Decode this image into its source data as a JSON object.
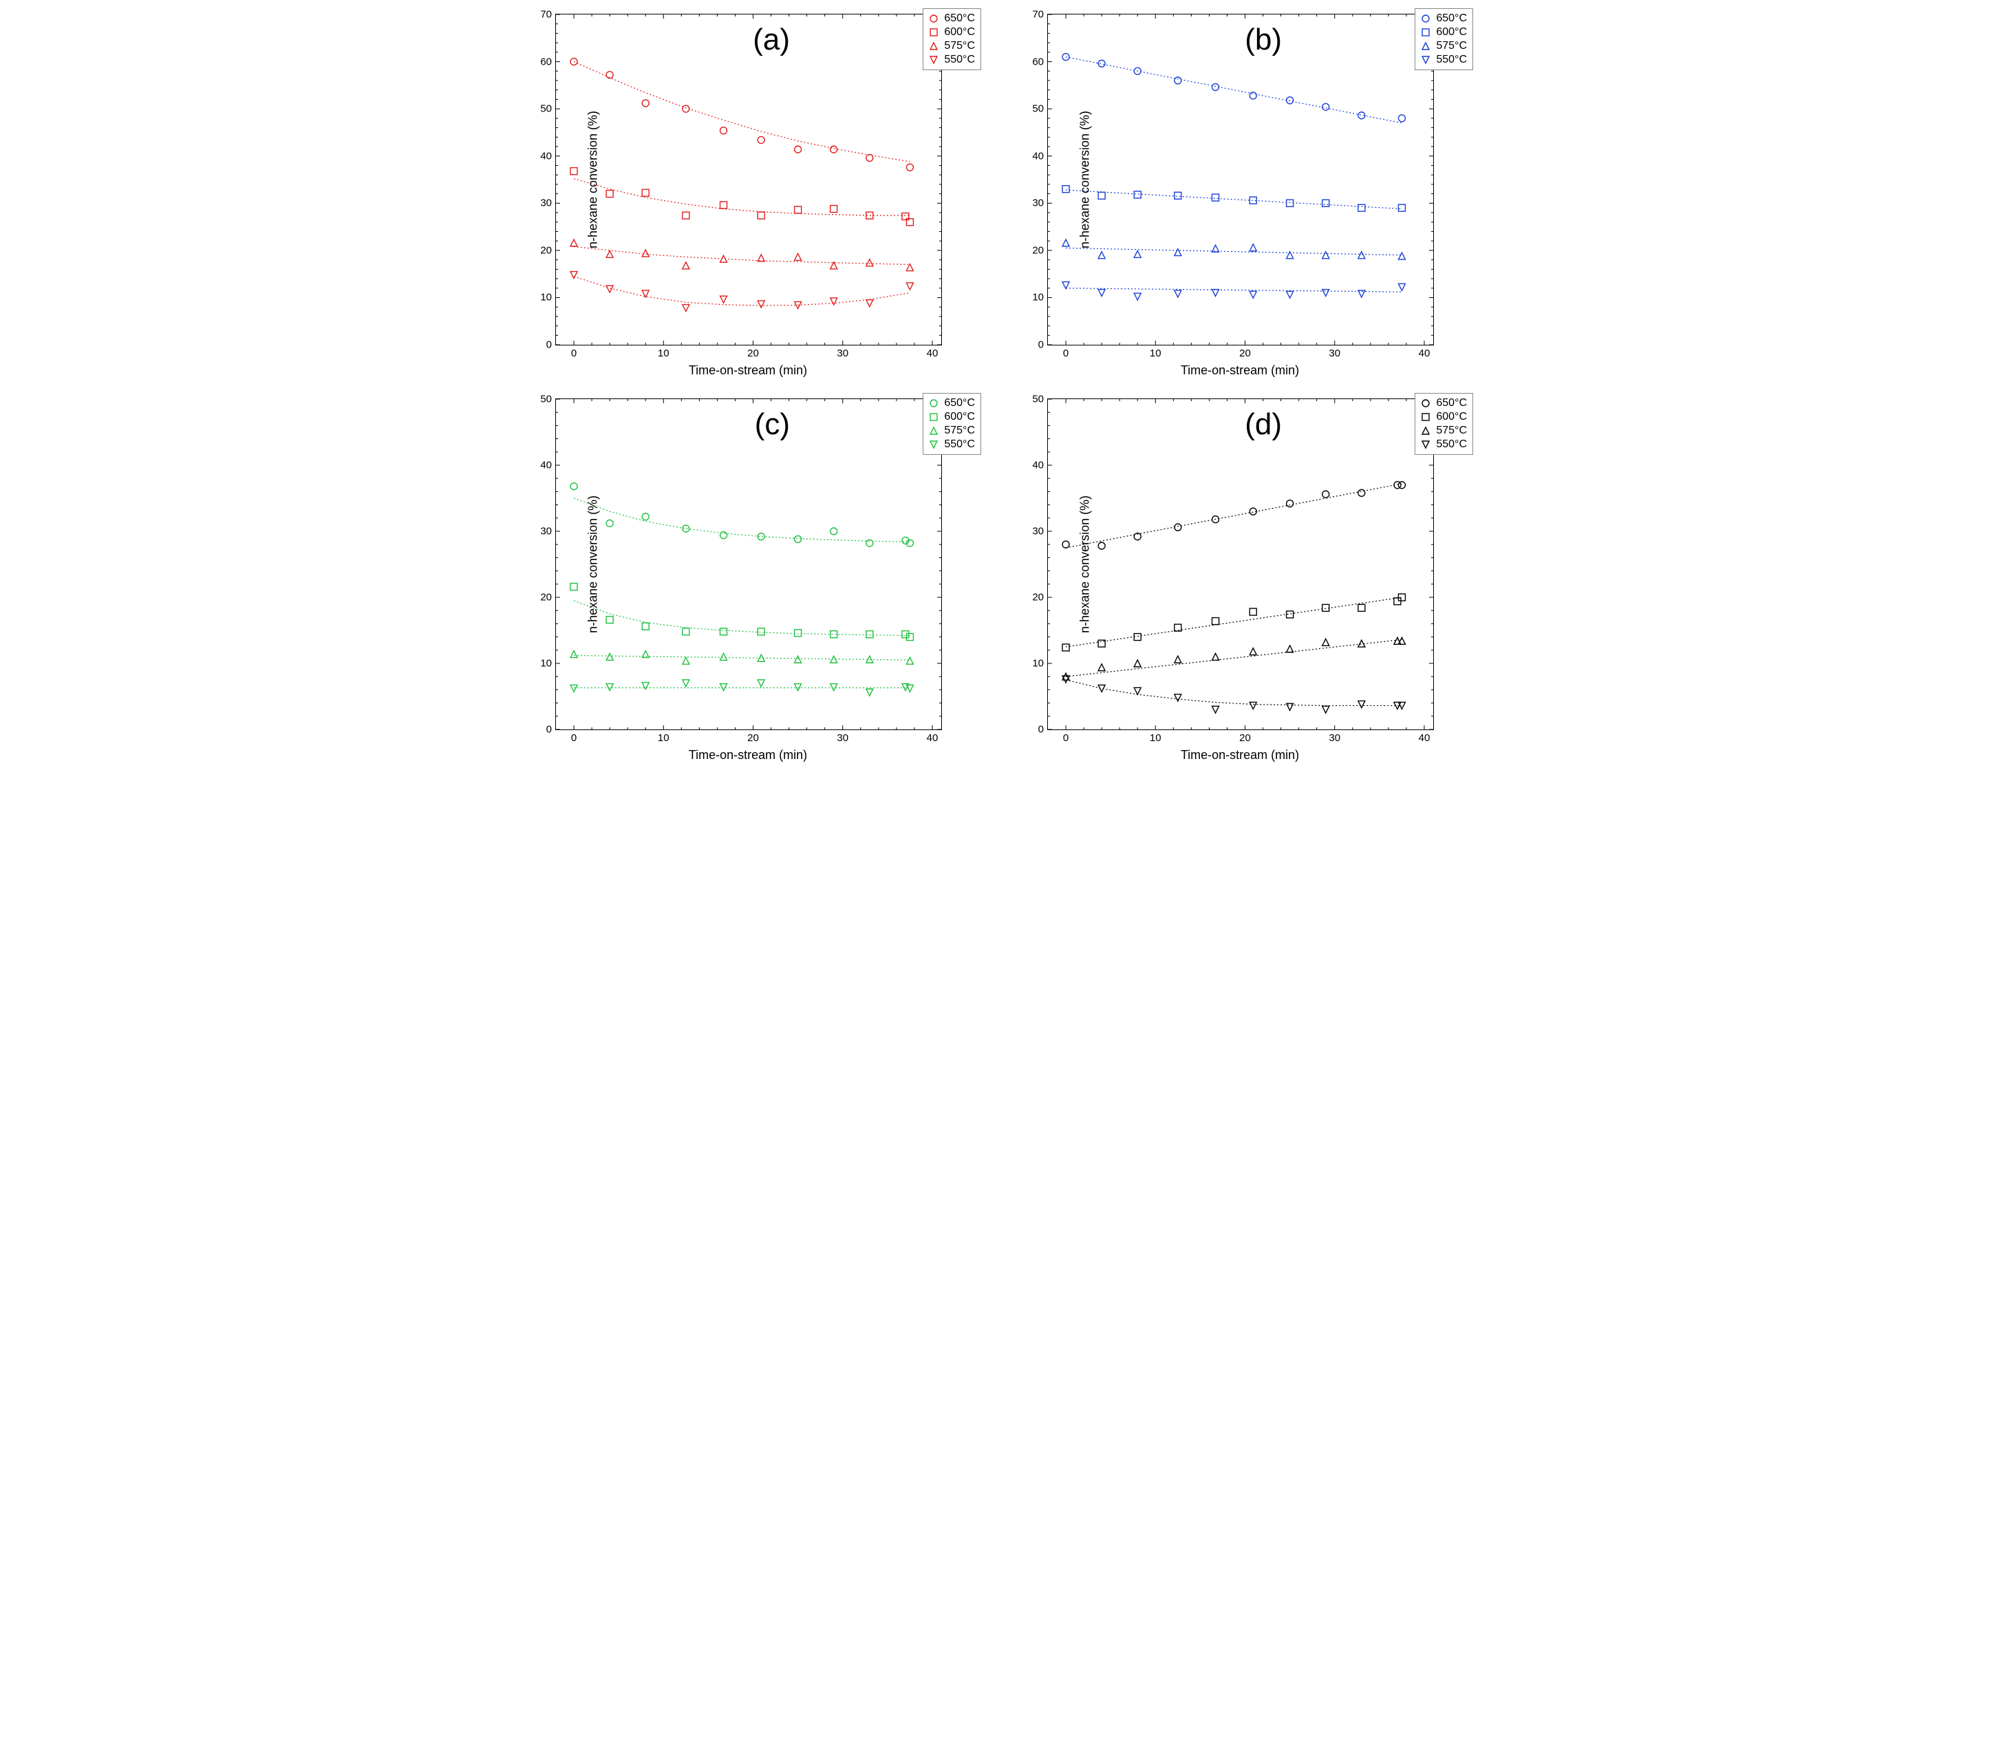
{
  "global": {
    "xlabel": "Time-on-stream (min)",
    "ylabel": "n-hexane conversion (%)",
    "label_fontsize": 18,
    "tick_fontsize": 15,
    "tag_fontsize": 44,
    "background_color": "#ffffff",
    "axis_color": "#000000",
    "grid_color": "#e0e0e0",
    "xlim": [
      -2,
      41
    ],
    "xticks": [
      0,
      10,
      20,
      30,
      40
    ],
    "legend_labels": [
      "650°C",
      "600°C",
      "575°C",
      "550°C"
    ],
    "markers": [
      "circle",
      "square",
      "triangle",
      "inv-triangle"
    ],
    "marker_size": 8,
    "line_dash": "2,3",
    "line_width": 1.2
  },
  "panels": [
    {
      "tag": "(a)",
      "color": "#e11d1d",
      "ylim": [
        0,
        70
      ],
      "yticks": [
        0,
        10,
        20,
        30,
        40,
        50,
        60,
        70
      ],
      "series": [
        {
          "x": [
            0,
            4,
            8,
            12.5,
            16.7,
            20.9,
            25,
            29,
            33,
            37.5
          ],
          "y": [
            60.0,
            57.2,
            51.2,
            50.0,
            45.4,
            43.4,
            41.4,
            41.4,
            39.6,
            37.6
          ],
          "fit": [
            [
              0,
              60.0
            ],
            [
              4,
              56.6
            ],
            [
              8,
              53.4
            ],
            [
              12.5,
              50.2
            ],
            [
              16.7,
              47.6
            ],
            [
              20.9,
              45.2
            ],
            [
              25,
              43.2
            ],
            [
              29,
              41.6
            ],
            [
              33,
              40.2
            ],
            [
              37.5,
              38.8
            ]
          ]
        },
        {
          "x": [
            0,
            4,
            8,
            12.5,
            16.7,
            20.9,
            25,
            29,
            33,
            37,
            37.5
          ],
          "y": [
            36.8,
            32.0,
            32.2,
            27.4,
            29.6,
            27.4,
            28.6,
            28.8,
            27.4,
            27.2,
            26.0
          ],
          "fit": [
            [
              0,
              35.2
            ],
            [
              4,
              33.0
            ],
            [
              8,
              31.2
            ],
            [
              12.5,
              29.8
            ],
            [
              16.7,
              28.8
            ],
            [
              20.9,
              28.2
            ],
            [
              25,
              27.8
            ],
            [
              29,
              27.6
            ],
            [
              33,
              27.4
            ],
            [
              37.5,
              27.4
            ]
          ]
        },
        {
          "x": [
            0,
            4,
            8,
            12.5,
            16.7,
            20.9,
            25,
            29,
            33,
            37.5
          ],
          "y": [
            21.6,
            19.2,
            19.4,
            16.8,
            18.2,
            18.4,
            18.6,
            16.8,
            17.4,
            16.4
          ],
          "fit": [
            [
              0,
              20.8
            ],
            [
              4,
              20.0
            ],
            [
              8,
              19.2
            ],
            [
              12.5,
              18.6
            ],
            [
              16.7,
              18.2
            ],
            [
              20.9,
              17.8
            ],
            [
              25,
              17.6
            ],
            [
              29,
              17.4
            ],
            [
              33,
              17.2
            ],
            [
              37.5,
              17.0
            ]
          ]
        },
        {
          "x": [
            0,
            4,
            8,
            12.5,
            16.7,
            20.9,
            25,
            29,
            33,
            37.5
          ],
          "y": [
            14.8,
            11.8,
            10.8,
            7.8,
            9.6,
            8.6,
            8.4,
            9.2,
            8.8,
            12.4
          ],
          "fit": [
            [
              0,
              14.5
            ],
            [
              4,
              12.0
            ],
            [
              8,
              10.2
            ],
            [
              12.5,
              9.0
            ],
            [
              16.7,
              8.5
            ],
            [
              20.9,
              8.3
            ],
            [
              25,
              8.4
            ],
            [
              29,
              8.8
            ],
            [
              33,
              9.6
            ],
            [
              37.5,
              11.0
            ]
          ]
        }
      ]
    },
    {
      "tag": "(b)",
      "color": "#1a3fd6",
      "ylim": [
        0,
        70
      ],
      "yticks": [
        0,
        10,
        20,
        30,
        40,
        50,
        60,
        70
      ],
      "series": [
        {
          "x": [
            0,
            4,
            8,
            12.5,
            16.7,
            20.9,
            25,
            29,
            33,
            37.5
          ],
          "y": [
            61.0,
            59.6,
            58.0,
            56.0,
            54.6,
            52.8,
            51.8,
            50.4,
            48.6,
            48.0
          ],
          "fit": [
            [
              0,
              61.0
            ],
            [
              37.5,
              47.0
            ]
          ]
        },
        {
          "x": [
            0,
            4,
            8,
            12.5,
            16.7,
            20.9,
            25,
            29,
            33,
            37.5
          ],
          "y": [
            33.0,
            31.6,
            31.8,
            31.6,
            31.2,
            30.6,
            30.0,
            30.0,
            29.0,
            29.0
          ],
          "fit": [
            [
              0,
              32.8
            ],
            [
              37.5,
              28.8
            ]
          ]
        },
        {
          "x": [
            0,
            4,
            8,
            12.5,
            16.7,
            20.9,
            25,
            29,
            33,
            37.5
          ],
          "y": [
            21.6,
            19.0,
            19.2,
            19.6,
            20.4,
            20.6,
            19.0,
            19.0,
            19.0,
            18.8
          ],
          "fit": [
            [
              0,
              20.5
            ],
            [
              37.5,
              19.0
            ]
          ]
        },
        {
          "x": [
            0,
            4,
            8,
            12.5,
            16.7,
            20.9,
            25,
            29,
            33,
            37.5
          ],
          "y": [
            12.6,
            11.0,
            10.2,
            10.8,
            11.0,
            10.6,
            10.6,
            11.0,
            10.8,
            12.2
          ],
          "fit": [
            [
              0,
              12.0
            ],
            [
              37.5,
              11.2
            ]
          ]
        }
      ]
    },
    {
      "tag": "(c)",
      "color": "#1fbf3f",
      "ylim": [
        0,
        50
      ],
      "yticks": [
        0,
        10,
        20,
        30,
        40,
        50
      ],
      "series": [
        {
          "x": [
            0,
            4,
            8,
            12.5,
            16.7,
            20.9,
            25,
            29,
            33,
            37,
            37.5
          ],
          "y": [
            36.8,
            31.2,
            32.2,
            30.4,
            29.4,
            29.2,
            28.8,
            30.0,
            28.2,
            28.6,
            28.2
          ],
          "fit": [
            [
              0,
              35.0
            ],
            [
              4,
              33.0
            ],
            [
              8,
              31.5
            ],
            [
              12.5,
              30.4
            ],
            [
              16.7,
              29.7
            ],
            [
              20.9,
              29.2
            ],
            [
              25,
              28.9
            ],
            [
              29,
              28.7
            ],
            [
              33,
              28.5
            ],
            [
              37.5,
              28.4
            ]
          ]
        },
        {
          "x": [
            0,
            4,
            8,
            12.5,
            16.7,
            20.9,
            25,
            29,
            33,
            37,
            37.5
          ],
          "y": [
            21.6,
            16.6,
            15.6,
            14.8,
            14.8,
            14.8,
            14.6,
            14.4,
            14.4,
            14.4,
            14.0
          ],
          "fit": [
            [
              0,
              19.5
            ],
            [
              4,
              17.5
            ],
            [
              8,
              16.2
            ],
            [
              12.5,
              15.4
            ],
            [
              16.7,
              15.0
            ],
            [
              20.9,
              14.7
            ],
            [
              25,
              14.5
            ],
            [
              29,
              14.4
            ],
            [
              33,
              14.3
            ],
            [
              37.5,
              14.2
            ]
          ]
        },
        {
          "x": [
            0,
            4,
            8,
            12.5,
            16.7,
            20.9,
            25,
            29,
            33,
            37.5
          ],
          "y": [
            11.4,
            11.0,
            11.4,
            10.4,
            11.0,
            10.8,
            10.6,
            10.6,
            10.6,
            10.4
          ],
          "fit": [
            [
              0,
              11.2
            ],
            [
              37.5,
              10.5
            ]
          ]
        },
        {
          "x": [
            0,
            4,
            8,
            12.5,
            16.7,
            20.9,
            25,
            29,
            33,
            37,
            37.5
          ],
          "y": [
            6.2,
            6.4,
            6.6,
            7.0,
            6.4,
            7.0,
            6.4,
            6.4,
            5.6,
            6.4,
            6.2
          ],
          "fit": [
            [
              0,
              6.3
            ],
            [
              37.5,
              6.3
            ]
          ]
        }
      ]
    },
    {
      "tag": "(d)",
      "color": "#000000",
      "ylim": [
        0,
        50
      ],
      "yticks": [
        0,
        10,
        20,
        30,
        40,
        50
      ],
      "series": [
        {
          "x": [
            0,
            4,
            8,
            12.5,
            16.7,
            20.9,
            25,
            29,
            33,
            37,
            37.5
          ],
          "y": [
            28.0,
            27.8,
            29.2,
            30.6,
            31.8,
            33.0,
            34.2,
            35.6,
            35.8,
            37.0,
            37.0
          ],
          "fit": [
            [
              0,
              27.5
            ],
            [
              37.5,
              37.2
            ]
          ]
        },
        {
          "x": [
            0,
            4,
            8,
            12.5,
            16.7,
            20.9,
            25,
            29,
            33,
            37,
            37.5
          ],
          "y": [
            12.4,
            13.0,
            14.0,
            15.4,
            16.4,
            17.8,
            17.4,
            18.4,
            18.4,
            19.4,
            20.0
          ],
          "fit": [
            [
              0,
              12.5
            ],
            [
              37.5,
              20.0
            ]
          ]
        },
        {
          "x": [
            0,
            4,
            8,
            12.5,
            16.7,
            20.9,
            25,
            29,
            33,
            37,
            37.5
          ],
          "y": [
            8.0,
            9.4,
            10.0,
            10.6,
            11.0,
            11.8,
            12.2,
            13.2,
            13.0,
            13.4,
            13.4
          ],
          "fit": [
            [
              0,
              8.0
            ],
            [
              37.5,
              13.6
            ]
          ]
        },
        {
          "x": [
            0,
            4,
            8,
            12.5,
            16.7,
            20.9,
            25,
            29,
            33,
            37,
            37.5
          ],
          "y": [
            7.6,
            6.2,
            5.8,
            4.8,
            3.0,
            3.6,
            3.4,
            3.0,
            3.8,
            3.6,
            3.6
          ],
          "fit": [
            [
              0,
              7.5
            ],
            [
              4,
              6.2
            ],
            [
              8,
              5.3
            ],
            [
              12.5,
              4.6
            ],
            [
              16.7,
              4.1
            ],
            [
              20.9,
              3.8
            ],
            [
              25,
              3.7
            ],
            [
              29,
              3.6
            ],
            [
              33,
              3.6
            ],
            [
              37.5,
              3.6
            ]
          ]
        }
      ]
    }
  ]
}
